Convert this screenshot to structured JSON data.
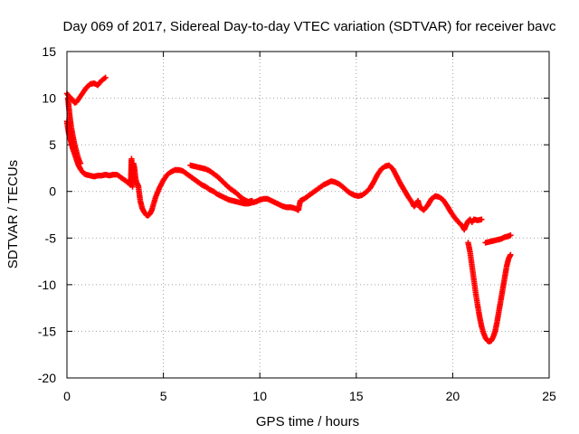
{
  "chart_data": {
    "type": "scatter",
    "title": "Day 069 of 2017, Sidereal Day-to-day VTEC variation (SDTVAR) for receiver bavc",
    "xlabel": "GPS time / hours",
    "ylabel": "SDTVAR / TECUs",
    "xlim": [
      0,
      25
    ],
    "ylim": [
      -20,
      15
    ],
    "xticks": [
      0,
      5,
      10,
      15,
      20,
      25
    ],
    "yticks": [
      15,
      10,
      5,
      0,
      -5,
      -10,
      -15,
      -20
    ],
    "grid": true,
    "marker": "plus",
    "color": "#ff0000",
    "series": [
      {
        "points": [
          [
            0.0,
            7.5
          ],
          [
            0.05,
            6.8
          ],
          [
            0.1,
            6.2
          ],
          [
            0.15,
            5.8
          ],
          [
            0.2,
            5.4
          ],
          [
            0.25,
            5.0
          ],
          [
            0.3,
            4.6
          ],
          [
            0.4,
            4.0
          ],
          [
            0.5,
            3.4
          ],
          [
            0.6,
            2.8
          ],
          [
            0.7,
            2.4
          ],
          [
            0.8,
            2.1
          ],
          [
            0.9,
            1.9
          ],
          [
            1.0,
            1.8
          ],
          [
            1.2,
            1.7
          ],
          [
            1.4,
            1.6
          ],
          [
            1.6,
            1.7
          ],
          [
            1.8,
            1.7
          ],
          [
            2.0,
            1.8
          ],
          [
            2.2,
            1.7
          ],
          [
            2.4,
            1.8
          ],
          [
            2.6,
            1.8
          ],
          [
            2.8,
            1.5
          ],
          [
            3.0,
            1.2
          ],
          [
            3.2,
            0.9
          ],
          [
            3.3,
            0.7
          ],
          [
            3.35,
            3.5
          ],
          [
            3.35,
            2.8
          ],
          [
            3.35,
            2.0
          ],
          [
            3.35,
            1.2
          ],
          [
            3.4,
            0.5
          ],
          [
            3.45,
            3.0
          ],
          [
            3.5,
            2.5
          ],
          [
            3.55,
            1.5
          ],
          [
            3.6,
            1.0
          ],
          [
            3.7,
            0.6
          ],
          [
            3.8,
            -1.0
          ],
          [
            3.9,
            -1.8
          ],
          [
            4.0,
            -2.2
          ],
          [
            4.1,
            -2.5
          ],
          [
            4.2,
            -2.6
          ],
          [
            4.3,
            -2.4
          ],
          [
            4.4,
            -2.0
          ],
          [
            4.5,
            -1.3
          ],
          [
            4.6,
            -0.6
          ],
          [
            4.7,
            -0.1
          ],
          [
            4.8,
            0.4
          ],
          [
            5.0,
            1.2
          ],
          [
            5.2,
            1.8
          ],
          [
            5.4,
            2.1
          ],
          [
            5.6,
            2.3
          ],
          [
            5.8,
            2.3
          ],
          [
            6.0,
            2.2
          ],
          [
            6.2,
            1.9
          ],
          [
            6.4,
            1.6
          ],
          [
            6.6,
            1.3
          ],
          [
            6.8,
            1.0
          ],
          [
            7.0,
            0.7
          ],
          [
            7.2,
            0.5
          ],
          [
            7.4,
            0.2
          ],
          [
            7.6,
            0.0
          ],
          [
            7.8,
            -0.3
          ],
          [
            8.0,
            -0.5
          ],
          [
            8.2,
            -0.7
          ],
          [
            8.4,
            -0.9
          ],
          [
            8.6,
            -1.0
          ],
          [
            8.8,
            -1.1
          ],
          [
            9.0,
            -1.2
          ],
          [
            9.2,
            -1.3
          ],
          [
            9.4,
            -1.3
          ],
          [
            9.6,
            -1.2
          ],
          [
            9.8,
            -1.1
          ],
          [
            10.0,
            -0.9
          ],
          [
            10.2,
            -0.8
          ],
          [
            10.4,
            -0.8
          ],
          [
            10.6,
            -1.0
          ],
          [
            10.8,
            -1.2
          ],
          [
            11.0,
            -1.4
          ],
          [
            11.2,
            -1.6
          ],
          [
            11.4,
            -1.7
          ],
          [
            11.6,
            -1.7
          ],
          [
            11.8,
            -1.8
          ],
          [
            12.0,
            -2.0
          ],
          [
            12.1,
            -1.0
          ],
          [
            12.3,
            -0.8
          ],
          [
            12.5,
            -0.5
          ],
          [
            12.7,
            -0.2
          ],
          [
            12.9,
            0.1
          ],
          [
            13.1,
            0.4
          ],
          [
            13.3,
            0.7
          ],
          [
            13.5,
            0.9
          ],
          [
            13.7,
            1.1
          ],
          [
            13.9,
            1.0
          ],
          [
            14.1,
            0.8
          ],
          [
            14.3,
            0.5
          ],
          [
            14.5,
            0.1
          ],
          [
            14.7,
            -0.2
          ],
          [
            14.9,
            -0.4
          ],
          [
            15.1,
            -0.5
          ],
          [
            15.3,
            -0.4
          ],
          [
            15.5,
            -0.1
          ],
          [
            15.7,
            0.3
          ],
          [
            15.9,
            1.0
          ],
          [
            16.1,
            1.8
          ],
          [
            16.3,
            2.4
          ],
          [
            16.5,
            2.7
          ],
          [
            16.7,
            2.8
          ],
          [
            16.9,
            2.4
          ],
          [
            17.1,
            1.6
          ],
          [
            17.3,
            0.8
          ],
          [
            17.5,
            0.1
          ],
          [
            17.7,
            -0.6
          ],
          [
            17.9,
            -1.2
          ],
          [
            18.0,
            -1.6
          ],
          [
            18.1,
            -1.4
          ],
          [
            18.2,
            -1.0
          ],
          [
            18.3,
            -1.7
          ],
          [
            18.5,
            -2.0
          ],
          [
            18.7,
            -1.5
          ],
          [
            18.9,
            -0.8
          ],
          [
            19.1,
            -0.5
          ],
          [
            19.3,
            -0.6
          ],
          [
            19.5,
            -0.9
          ],
          [
            19.7,
            -1.5
          ],
          [
            19.9,
            -2.2
          ],
          [
            20.1,
            -2.8
          ],
          [
            20.3,
            -3.3
          ],
          [
            20.5,
            -3.7
          ],
          [
            20.6,
            -4.1
          ],
          [
            20.7,
            -3.6
          ],
          [
            20.8,
            -3.2
          ],
          [
            20.9,
            -3.0
          ],
          [
            21.0,
            -3.3
          ],
          [
            21.1,
            -3.0
          ],
          [
            21.3,
            -3.1
          ],
          [
            21.5,
            -3.0
          ]
        ]
      },
      {
        "points": [
          [
            0.0,
            10.5
          ],
          [
            0.1,
            10.2
          ],
          [
            0.2,
            10.0
          ],
          [
            0.3,
            9.8
          ],
          [
            0.4,
            9.5
          ],
          [
            0.5,
            9.6
          ],
          [
            0.6,
            9.9
          ],
          [
            0.8,
            10.5
          ],
          [
            1.0,
            11.1
          ],
          [
            1.2,
            11.5
          ],
          [
            1.4,
            11.6
          ],
          [
            1.6,
            11.4
          ],
          [
            1.8,
            11.9
          ],
          [
            2.0,
            12.2
          ]
        ]
      },
      {
        "points": [
          [
            0.05,
            10.0
          ],
          [
            0.1,
            9.0
          ],
          [
            0.15,
            8.0
          ],
          [
            0.2,
            7.2
          ],
          [
            0.3,
            6.0
          ],
          [
            0.4,
            5.0
          ],
          [
            0.5,
            4.2
          ],
          [
            0.6,
            3.5
          ],
          [
            0.7,
            3.0
          ]
        ]
      },
      {
        "points": [
          [
            6.4,
            2.8
          ],
          [
            6.6,
            2.7
          ],
          [
            6.8,
            2.6
          ],
          [
            7.0,
            2.5
          ],
          [
            7.2,
            2.4
          ],
          [
            7.4,
            2.2
          ],
          [
            7.6,
            1.9
          ],
          [
            7.8,
            1.6
          ],
          [
            8.0,
            1.2
          ],
          [
            8.2,
            0.8
          ],
          [
            8.4,
            0.4
          ],
          [
            8.6,
            0.1
          ],
          [
            8.8,
            -0.2
          ],
          [
            9.0,
            -0.6
          ],
          [
            9.2,
            -0.9
          ],
          [
            9.4,
            -1.1
          ],
          [
            9.6,
            -1.0
          ]
        ]
      },
      {
        "points": [
          [
            20.8,
            -5.5
          ],
          [
            20.9,
            -6.5
          ],
          [
            21.0,
            -8.0
          ],
          [
            21.1,
            -9.5
          ],
          [
            21.2,
            -11.0
          ],
          [
            21.3,
            -12.3
          ],
          [
            21.4,
            -13.5
          ],
          [
            21.5,
            -14.5
          ],
          [
            21.6,
            -15.2
          ],
          [
            21.7,
            -15.7
          ],
          [
            21.8,
            -16.0
          ],
          [
            21.9,
            -16.1
          ],
          [
            22.0,
            -16.0
          ],
          [
            22.1,
            -15.6
          ],
          [
            22.2,
            -15.0
          ],
          [
            22.3,
            -14.0
          ],
          [
            22.4,
            -12.8
          ],
          [
            22.5,
            -11.6
          ],
          [
            22.6,
            -10.4
          ],
          [
            22.7,
            -9.2
          ],
          [
            22.8,
            -8.0
          ],
          [
            22.9,
            -7.2
          ],
          [
            23.0,
            -6.8
          ]
        ]
      },
      {
        "points": [
          [
            21.7,
            -5.5
          ],
          [
            21.9,
            -5.4
          ],
          [
            22.1,
            -5.3
          ],
          [
            22.3,
            -5.2
          ],
          [
            22.5,
            -5.1
          ],
          [
            22.7,
            -4.9
          ],
          [
            22.9,
            -4.8
          ],
          [
            23.0,
            -4.7
          ]
        ]
      }
    ]
  }
}
